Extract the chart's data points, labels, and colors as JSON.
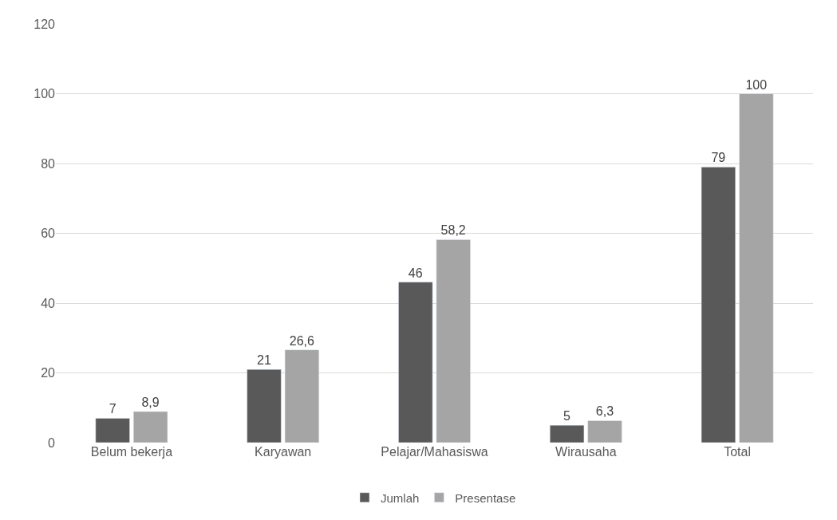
{
  "chart_data": {
    "type": "bar",
    "categories": [
      "Belum bekerja",
      "Karyawan",
      "Pelajar/Mahasiswa",
      "Wirausaha",
      "Total"
    ],
    "series": [
      {
        "name": "Jumlah",
        "color": "#595959",
        "values": [
          7,
          21,
          46,
          5,
          79
        ],
        "value_labels": [
          "7",
          "21",
          "46",
          "5",
          "79"
        ]
      },
      {
        "name": "Presentase",
        "color": "#a5a5a5",
        "values": [
          8.9,
          26.6,
          58.2,
          6.3,
          100
        ],
        "value_labels": [
          "8,9",
          "26,6",
          "58,2",
          "6,3",
          "100"
        ]
      }
    ],
    "ylim": [
      0,
      120
    ],
    "yticks": [
      0,
      20,
      40,
      60,
      80,
      100,
      120
    ],
    "grid": "y",
    "legend": "bottom"
  }
}
